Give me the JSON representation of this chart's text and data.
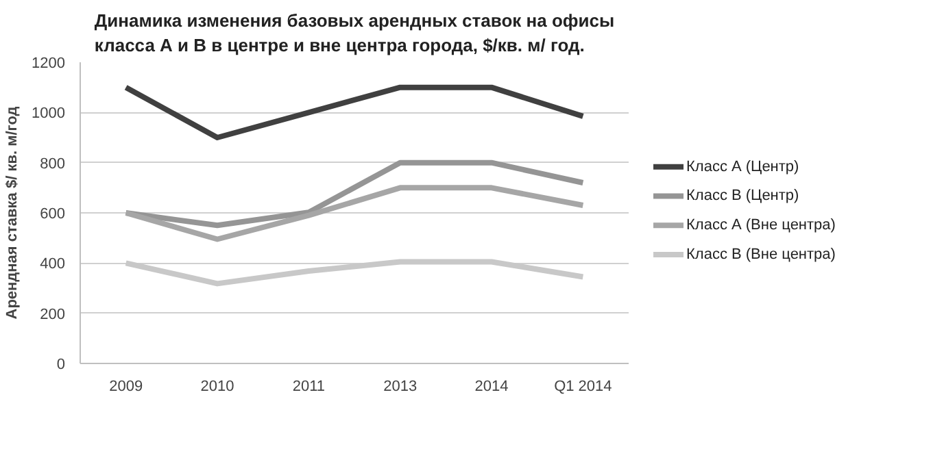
{
  "chart_data": {
    "type": "line",
    "title": "Динамика изменения базовых арендных ставок на офисы класса А и В в центре и вне центра города, $/кв. м/ год.",
    "ylabel": "Арендная ставка $/ кв. м/год",
    "categories": [
      "2009",
      "2010",
      "2011",
      "2013",
      "2014",
      "Q1 2014"
    ],
    "series": [
      {
        "name": "Класс А (Центр)",
        "color": "#404040",
        "values": [
          1100,
          900,
          1000,
          1100,
          1100,
          985
        ]
      },
      {
        "name": "Класс В (Центр)",
        "color": "#959595",
        "values": [
          600,
          550,
          602,
          800,
          800,
          720
        ]
      },
      {
        "name": "Класс А (Вне центра)",
        "color": "#a6a6a6",
        "values": [
          600,
          495,
          590,
          700,
          700,
          630
        ]
      },
      {
        "name": "Класс В (Вне центра)",
        "color": "#c8c8c8",
        "values": [
          400,
          318,
          368,
          405,
          405,
          345
        ]
      }
    ],
    "ylim": [
      0,
      1200
    ],
    "yticks": [
      0,
      200,
      400,
      600,
      800,
      1000,
      1200
    ],
    "grid": "y",
    "legend": "right",
    "marker": "none",
    "line_style": "solid"
  }
}
